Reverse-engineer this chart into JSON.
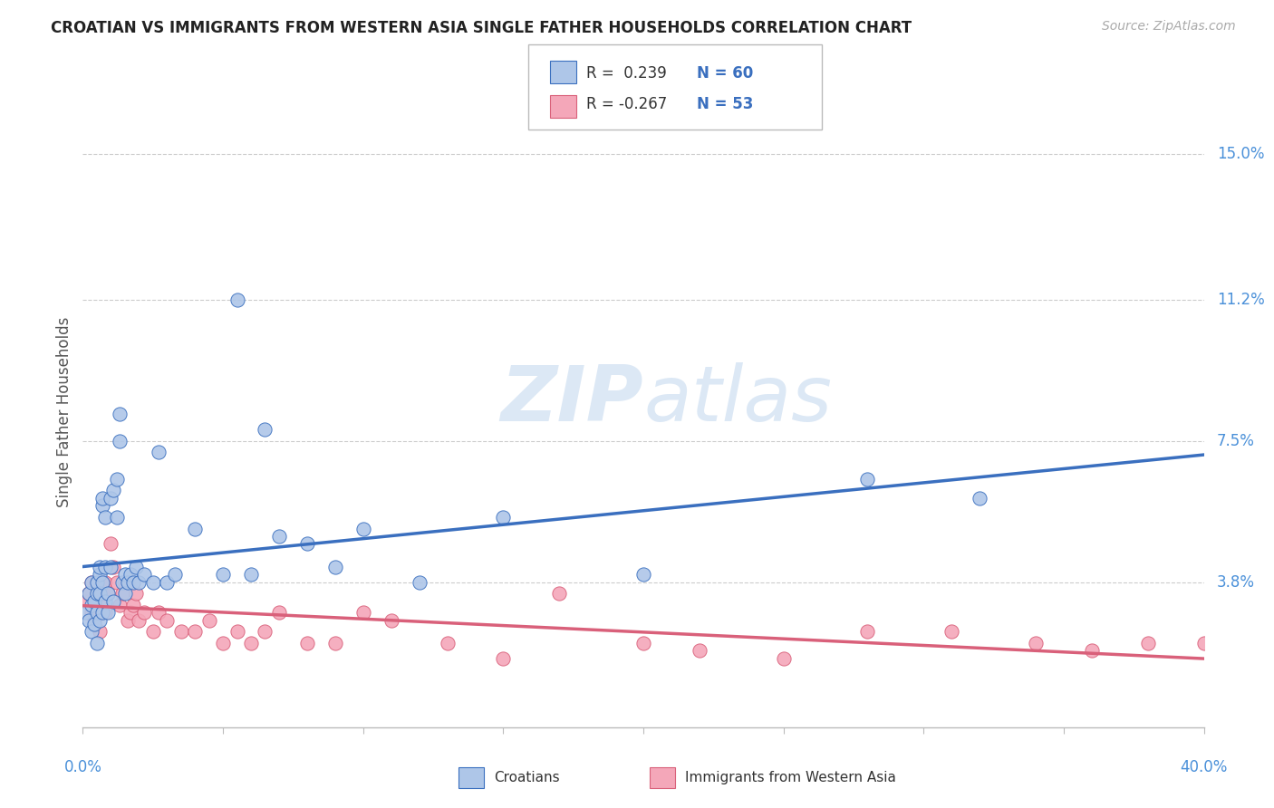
{
  "title": "CROATIAN VS IMMIGRANTS FROM WESTERN ASIA SINGLE FATHER HOUSEHOLDS CORRELATION CHART",
  "source": "Source: ZipAtlas.com",
  "ylabel": "Single Father Households",
  "yticks_labels": [
    "15.0%",
    "11.2%",
    "7.5%",
    "3.8%"
  ],
  "ytick_vals": [
    0.15,
    0.112,
    0.075,
    0.038
  ],
  "xlim": [
    0.0,
    0.4
  ],
  "ylim": [
    0.0,
    0.165
  ],
  "legend_label1": "Croatians",
  "legend_label2": "Immigrants from Western Asia",
  "color_blue": "#aec6e8",
  "color_pink": "#f4a7b9",
  "line_color_blue": "#3a6fbf",
  "line_color_pink": "#d9607a",
  "watermark_zip": "ZIP",
  "watermark_atlas": "atlas",
  "watermark_color": "#dce8f5",
  "background_color": "#ffffff",
  "grid_color": "#cccccc",
  "title_color": "#222222",
  "source_color": "#aaaaaa",
  "axis_label_color": "#4a90d9",
  "croatian_x": [
    0.001,
    0.002,
    0.002,
    0.003,
    0.003,
    0.003,
    0.004,
    0.004,
    0.005,
    0.005,
    0.005,
    0.005,
    0.006,
    0.006,
    0.006,
    0.006,
    0.007,
    0.007,
    0.007,
    0.007,
    0.008,
    0.008,
    0.008,
    0.009,
    0.009,
    0.01,
    0.01,
    0.011,
    0.011,
    0.012,
    0.012,
    0.013,
    0.013,
    0.014,
    0.015,
    0.015,
    0.016,
    0.017,
    0.018,
    0.019,
    0.02,
    0.022,
    0.025,
    0.027,
    0.03,
    0.033,
    0.04,
    0.05,
    0.055,
    0.06,
    0.065,
    0.07,
    0.08,
    0.09,
    0.1,
    0.12,
    0.15,
    0.2,
    0.28,
    0.32
  ],
  "croatian_y": [
    0.03,
    0.028,
    0.035,
    0.025,
    0.032,
    0.038,
    0.033,
    0.027,
    0.022,
    0.03,
    0.035,
    0.038,
    0.028,
    0.035,
    0.04,
    0.042,
    0.03,
    0.038,
    0.058,
    0.06,
    0.033,
    0.042,
    0.055,
    0.03,
    0.035,
    0.042,
    0.06,
    0.033,
    0.062,
    0.055,
    0.065,
    0.075,
    0.082,
    0.038,
    0.04,
    0.035,
    0.038,
    0.04,
    0.038,
    0.042,
    0.038,
    0.04,
    0.038,
    0.072,
    0.038,
    0.04,
    0.052,
    0.04,
    0.112,
    0.04,
    0.078,
    0.05,
    0.048,
    0.042,
    0.052,
    0.038,
    0.055,
    0.04,
    0.065,
    0.06
  ],
  "immigrant_x": [
    0.001,
    0.002,
    0.003,
    0.003,
    0.004,
    0.005,
    0.005,
    0.006,
    0.006,
    0.007,
    0.007,
    0.008,
    0.008,
    0.009,
    0.01,
    0.011,
    0.012,
    0.013,
    0.014,
    0.015,
    0.016,
    0.017,
    0.018,
    0.019,
    0.02,
    0.022,
    0.025,
    0.027,
    0.03,
    0.035,
    0.04,
    0.045,
    0.05,
    0.055,
    0.06,
    0.065,
    0.07,
    0.08,
    0.09,
    0.1,
    0.11,
    0.13,
    0.15,
    0.17,
    0.2,
    0.22,
    0.25,
    0.28,
    0.31,
    0.34,
    0.36,
    0.38,
    0.4
  ],
  "immigrant_y": [
    0.033,
    0.035,
    0.03,
    0.038,
    0.028,
    0.035,
    0.03,
    0.032,
    0.025,
    0.038,
    0.035,
    0.03,
    0.038,
    0.035,
    0.048,
    0.042,
    0.038,
    0.032,
    0.035,
    0.038,
    0.028,
    0.03,
    0.032,
    0.035,
    0.028,
    0.03,
    0.025,
    0.03,
    0.028,
    0.025,
    0.025,
    0.028,
    0.022,
    0.025,
    0.022,
    0.025,
    0.03,
    0.022,
    0.022,
    0.03,
    0.028,
    0.022,
    0.018,
    0.035,
    0.022,
    0.02,
    0.018,
    0.025,
    0.025,
    0.022,
    0.02,
    0.022,
    0.022
  ]
}
